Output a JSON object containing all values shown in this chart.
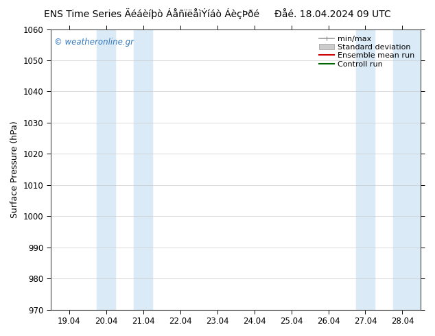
{
  "title": "ENS Time Series Äéáèíþò ÁåñïëåìÝíáò ÁèçÞðé     Ðåé. 18.04.2024 09 UTC",
  "ylabel": "Surface Pressure (hPa)",
  "watermark": "© weatheronline.gr",
  "ylim": [
    970,
    1060
  ],
  "yticks": [
    970,
    980,
    990,
    1000,
    1010,
    1020,
    1030,
    1040,
    1050,
    1060
  ],
  "xtick_labels": [
    "19.04",
    "20.04",
    "21.04",
    "22.04",
    "23.04",
    "24.04",
    "25.04",
    "26.04",
    "27.04",
    "28.04"
  ],
  "xtick_positions": [
    0,
    1,
    2,
    3,
    4,
    5,
    6,
    7,
    8,
    9
  ],
  "xlim": [
    -0.5,
    9.5
  ],
  "shade_bands": [
    {
      "x_start": 0.75,
      "x_end": 1.25,
      "color": "#daeaf7"
    },
    {
      "x_start": 1.75,
      "x_end": 2.25,
      "color": "#daeaf7"
    },
    {
      "x_start": 7.75,
      "x_end": 8.25,
      "color": "#daeaf7"
    },
    {
      "x_start": 8.75,
      "x_end": 9.5,
      "color": "#daeaf7"
    }
  ],
  "background_color": "#ffffff",
  "plot_bg_color": "#ffffff",
  "title_fontsize": 10,
  "watermark_color": "#3377bb",
  "grid_color": "#cccccc",
  "spine_color": "#444444"
}
